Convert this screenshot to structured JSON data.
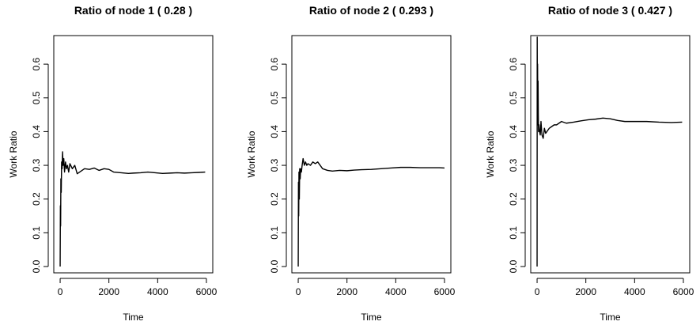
{
  "chart_data": [
    {
      "type": "line",
      "title": "Ratio of node  1  ( 0.28 )",
      "xlabel": "Time",
      "ylabel": "Work Ratio",
      "xlim": [
        0,
        6000
      ],
      "ylim": [
        0.0,
        0.68
      ],
      "xticks": [
        0,
        2000,
        4000,
        6000
      ],
      "yticks": [
        0.0,
        0.1,
        0.2,
        0.3,
        0.4,
        0.5,
        0.6
      ],
      "series": [
        {
          "x": [
            0,
            10,
            20,
            30,
            45,
            60,
            80,
            100,
            120,
            150,
            180,
            220,
            260,
            300,
            350,
            400,
            500,
            600,
            700,
            800,
            900,
            1000,
            1200,
            1400,
            1600,
            1800,
            2000,
            2200,
            2500,
            2800,
            3000,
            3300,
            3600,
            3900,
            4200,
            4500,
            4800,
            5100,
            5400,
            5700,
            5950
          ],
          "y": [
            0.0,
            0.18,
            0.12,
            0.26,
            0.22,
            0.31,
            0.29,
            0.34,
            0.3,
            0.32,
            0.28,
            0.31,
            0.29,
            0.3,
            0.28,
            0.305,
            0.29,
            0.3,
            0.275,
            0.28,
            0.285,
            0.29,
            0.288,
            0.292,
            0.285,
            0.29,
            0.288,
            0.28,
            0.278,
            0.276,
            0.277,
            0.278,
            0.28,
            0.278,
            0.276,
            0.277,
            0.278,
            0.277,
            0.278,
            0.279,
            0.28
          ]
        }
      ]
    },
    {
      "type": "line",
      "title": "Ratio of node  2  ( 0.293 )",
      "xlabel": "Time",
      "ylabel": "Work Ratio",
      "xlim": [
        0,
        6000
      ],
      "ylim": [
        0.0,
        0.68
      ],
      "xticks": [
        0,
        2000,
        4000,
        6000
      ],
      "yticks": [
        0.0,
        0.1,
        0.2,
        0.3,
        0.4,
        0.5,
        0.6
      ],
      "series": [
        {
          "x": [
            0,
            10,
            20,
            30,
            45,
            60,
            80,
            100,
            130,
            160,
            200,
            250,
            300,
            350,
            400,
            500,
            600,
            700,
            800,
            900,
            1000,
            1200,
            1400,
            1700,
            2000,
            2300,
            2600,
            3000,
            3400,
            3800,
            4200,
            4600,
            5000,
            5400,
            5800,
            6000
          ],
          "y": [
            0.0,
            0.25,
            0.15,
            0.28,
            0.2,
            0.29,
            0.26,
            0.29,
            0.28,
            0.3,
            0.32,
            0.3,
            0.31,
            0.3,
            0.305,
            0.3,
            0.31,
            0.305,
            0.31,
            0.3,
            0.29,
            0.285,
            0.283,
            0.285,
            0.284,
            0.286,
            0.287,
            0.288,
            0.29,
            0.292,
            0.294,
            0.294,
            0.293,
            0.293,
            0.293,
            0.292
          ]
        }
      ]
    },
    {
      "type": "line",
      "title": "Ratio of node  3  ( 0.427 )",
      "xlabel": "Time",
      "ylabel": "Work Ratio",
      "xlim": [
        0,
        6000
      ],
      "ylim": [
        0.0,
        0.68
      ],
      "xticks": [
        0,
        2000,
        4000,
        6000
      ],
      "yticks": [
        0.0,
        0.1,
        0.2,
        0.3,
        0.4,
        0.5,
        0.6
      ],
      "series": [
        {
          "x": [
            0,
            5,
            12,
            20,
            30,
            40,
            50,
            60,
            80,
            100,
            130,
            160,
            200,
            250,
            300,
            350,
            400,
            500,
            600,
            700,
            800,
            1000,
            1200,
            1500,
            1800,
            2100,
            2400,
            2700,
            3000,
            3300,
            3600,
            4000,
            4500,
            5000,
            5500,
            5950
          ],
          "y": [
            0.0,
            0.68,
            0.5,
            0.6,
            0.42,
            0.55,
            0.45,
            0.4,
            0.42,
            0.4,
            0.39,
            0.43,
            0.39,
            0.38,
            0.41,
            0.395,
            0.4,
            0.41,
            0.415,
            0.42,
            0.42,
            0.43,
            0.425,
            0.428,
            0.432,
            0.435,
            0.437,
            0.44,
            0.438,
            0.433,
            0.43,
            0.43,
            0.43,
            0.428,
            0.427,
            0.428
          ]
        }
      ]
    }
  ]
}
